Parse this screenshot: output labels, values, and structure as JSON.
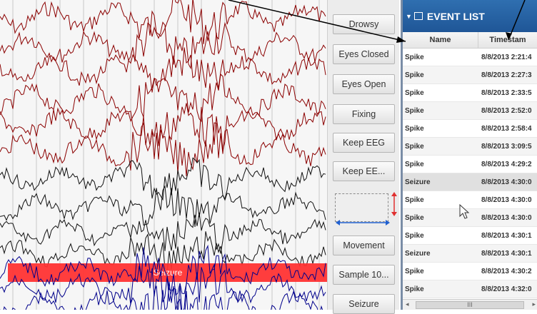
{
  "eeg": {
    "seizure_label": "Seizure",
    "colors": {
      "red_trace": "#8b0000",
      "black_trace": "#111111",
      "blue_trace": "#00008b",
      "seizure_bar": "#ff3333",
      "grid": "#c8c8c8"
    }
  },
  "buttons": [
    {
      "label": "Drowsy"
    },
    {
      "label": "Eyes Closed"
    },
    {
      "label": "Eyes Open"
    },
    {
      "label": "Fixing"
    },
    {
      "label": "Keep EEG"
    },
    {
      "label": "Keep EE..."
    },
    {
      "label": "Movement"
    },
    {
      "label": "Sample 10..."
    },
    {
      "label": "Seizure"
    }
  ],
  "event_list": {
    "title": "EVENT LIST",
    "columns": [
      "Name",
      "Timestam"
    ],
    "rows": [
      {
        "name": "Spike",
        "time": "8/8/2013 2:21:4"
      },
      {
        "name": "Spike",
        "time": "8/8/2013 2:27:3"
      },
      {
        "name": "Spike",
        "time": "8/8/2013 2:33:5"
      },
      {
        "name": "Spike",
        "time": "8/8/2013 2:52:0"
      },
      {
        "name": "Spike",
        "time": "8/8/2013 2:58:4"
      },
      {
        "name": "Spike",
        "time": "8/8/2013 3:09:5"
      },
      {
        "name": "Spike",
        "time": "8/8/2013 4:29:2"
      },
      {
        "name": "Seizure",
        "time": "8/8/2013 4:30:0"
      },
      {
        "name": "Spike",
        "time": "8/8/2013 4:30:0"
      },
      {
        "name": "Spike",
        "time": "8/8/2013 4:30:0"
      },
      {
        "name": "Spike",
        "time": "8/8/2013 4:30:1"
      },
      {
        "name": "Seizure",
        "time": "8/8/2013 4:30:1"
      },
      {
        "name": "Spike",
        "time": "8/8/2013 4:30:2"
      },
      {
        "name": "Spike",
        "time": "8/8/2013 4:32:0"
      }
    ],
    "scroll_label": "III"
  }
}
